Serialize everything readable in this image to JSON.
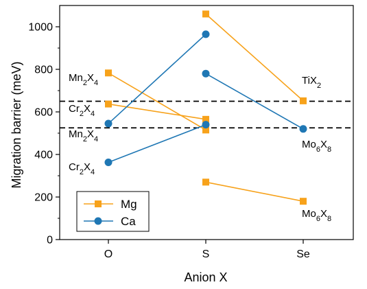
{
  "chart_data": {
    "type": "line",
    "xlabel": "Anion X",
    "ylabel": "Migration barrier (meV)",
    "categories": [
      "O",
      "S",
      "Se"
    ],
    "ylim": [
      0,
      1100
    ],
    "yticks": [
      0,
      200,
      400,
      600,
      800,
      1000
    ],
    "grid": false,
    "legend_position": "bottom-left",
    "legend": [
      {
        "name": "Mg",
        "color": "#f7a21b",
        "marker": "square"
      },
      {
        "name": "Ca",
        "color": "#1f77b4",
        "marker": "circle"
      }
    ],
    "series": [
      {
        "name": "Mg",
        "color": "#f7a21b",
        "marker": "square",
        "points": [
          [
            "O",
            783
          ],
          [
            "S",
            515
          ]
        ]
      },
      {
        "name": "Mg",
        "color": "#f7a21b",
        "marker": "square",
        "points": [
          [
            "O",
            637
          ],
          [
            "S",
            565
          ]
        ]
      },
      {
        "name": "Mg",
        "color": "#f7a21b",
        "marker": "square",
        "points": [
          [
            "S",
            1060
          ],
          [
            "Se",
            652
          ]
        ]
      },
      {
        "name": "Mg",
        "color": "#f7a21b",
        "marker": "square",
        "points": [
          [
            "S",
            270
          ],
          [
            "Se",
            180
          ]
        ]
      },
      {
        "name": "Ca",
        "color": "#1f77b4",
        "marker": "circle",
        "points": [
          [
            "O",
            545
          ],
          [
            "S",
            965
          ]
        ]
      },
      {
        "name": "Ca",
        "color": "#1f77b4",
        "marker": "circle",
        "points": [
          [
            "O",
            363
          ],
          [
            "S",
            540
          ]
        ]
      },
      {
        "name": "Ca",
        "color": "#1f77b4",
        "marker": "circle",
        "points": [
          [
            "S",
            780
          ],
          [
            "Se",
            520
          ]
        ]
      }
    ],
    "reference_lines": [
      {
        "y": 650,
        "style": "dashed",
        "color": "#000000"
      },
      {
        "y": 525,
        "style": "dashed",
        "color": "#000000"
      }
    ],
    "annotations": [
      {
        "base": "Mn",
        "sub1": "2",
        "mid": "X",
        "sub2": "4"
      },
      {
        "base": "Cr",
        "sub1": "2",
        "mid": "X",
        "sub2": "4"
      },
      {
        "base": "Mn",
        "sub1": "2",
        "mid": "X",
        "sub2": "4"
      },
      {
        "base": "Cr",
        "sub1": "2",
        "mid": "X",
        "sub2": "4"
      },
      {
        "base": "Ti",
        "sub1": "",
        "mid": "X",
        "sub2": "2"
      },
      {
        "base": "Mo",
        "sub1": "6",
        "mid": "X",
        "sub2": "8"
      },
      {
        "base": "Mo",
        "sub1": "6",
        "mid": "X",
        "sub2": "8"
      }
    ]
  }
}
